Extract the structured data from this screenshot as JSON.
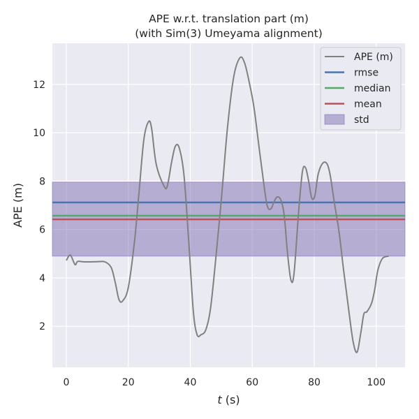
{
  "chart_data": {
    "type": "line",
    "title": "APE w.r.t. translation part (m)",
    "subtitle": "(with Sim(3) Umeyama alignment)",
    "xlabel_var": "t",
    "xlabel_unit": " (s)",
    "ylabel": "APE (m)",
    "xlim": [
      -4.5,
      109.3
    ],
    "ylim": [
      0.3,
      13.7
    ],
    "xticks": [
      0,
      20,
      40,
      60,
      80,
      100
    ],
    "yticks": [
      2,
      4,
      6,
      8,
      10,
      12
    ],
    "grid": true,
    "legend_position": "top-right",
    "series": [
      {
        "name": "APE (m)",
        "color": "#808080",
        "x": [
          0,
          1.3,
          2.8,
          3.7,
          6,
          10,
          12.5,
          14.5,
          15.8,
          17,
          18.2,
          20,
          22,
          23.5,
          25,
          26.5,
          27.5,
          29,
          31.5,
          32.6,
          34,
          35.2,
          36.5,
          38,
          39.5,
          41,
          42.2,
          43.5,
          45,
          46.5,
          48,
          50,
          52,
          54,
          56,
          57.5,
          59,
          60.5,
          62,
          63.5,
          64.8,
          66,
          67.2,
          68.2,
          69.3,
          70.3,
          71.4,
          72.5,
          73.5,
          75,
          76.2,
          77.2,
          78.2,
          79.2,
          80.2,
          81.3,
          82.8,
          84.2,
          85.2,
          86.5,
          88,
          89.5,
          91,
          92.5,
          93.8,
          95,
          96,
          97,
          98.5,
          99.5,
          100.5,
          102,
          104
        ],
        "y": [
          4.72,
          4.94,
          4.55,
          4.68,
          4.66,
          4.67,
          4.66,
          4.42,
          3.8,
          3.1,
          3.05,
          3.6,
          5.5,
          7.6,
          9.7,
          10.45,
          10.2,
          8.7,
          7.8,
          7.8,
          8.8,
          9.45,
          9.35,
          8.2,
          5.5,
          2.6,
          1.65,
          1.65,
          1.85,
          2.7,
          4.5,
          7.2,
          10.2,
          12.3,
          13.1,
          12.9,
          12.1,
          11.1,
          9.6,
          8.1,
          7.0,
          6.85,
          7.2,
          7.35,
          7.2,
          6.6,
          5.0,
          3.9,
          4.2,
          6.8,
          8.4,
          8.55,
          8.0,
          7.3,
          7.4,
          8.3,
          8.75,
          8.7,
          8.2,
          7.1,
          5.9,
          4.3,
          2.8,
          1.4,
          0.92,
          1.7,
          2.5,
          2.6,
          2.95,
          3.5,
          4.3,
          4.8,
          4.9
        ]
      },
      {
        "name": "rmse",
        "color": "#4c72b0",
        "value": 7.12
      },
      {
        "name": "median",
        "color": "#55a868",
        "value": 6.57
      },
      {
        "name": "mean",
        "color": "#c44e52",
        "value": 6.42
      },
      {
        "name": "std",
        "color": "#8172b2",
        "band": [
          4.9,
          7.96
        ]
      }
    ]
  }
}
